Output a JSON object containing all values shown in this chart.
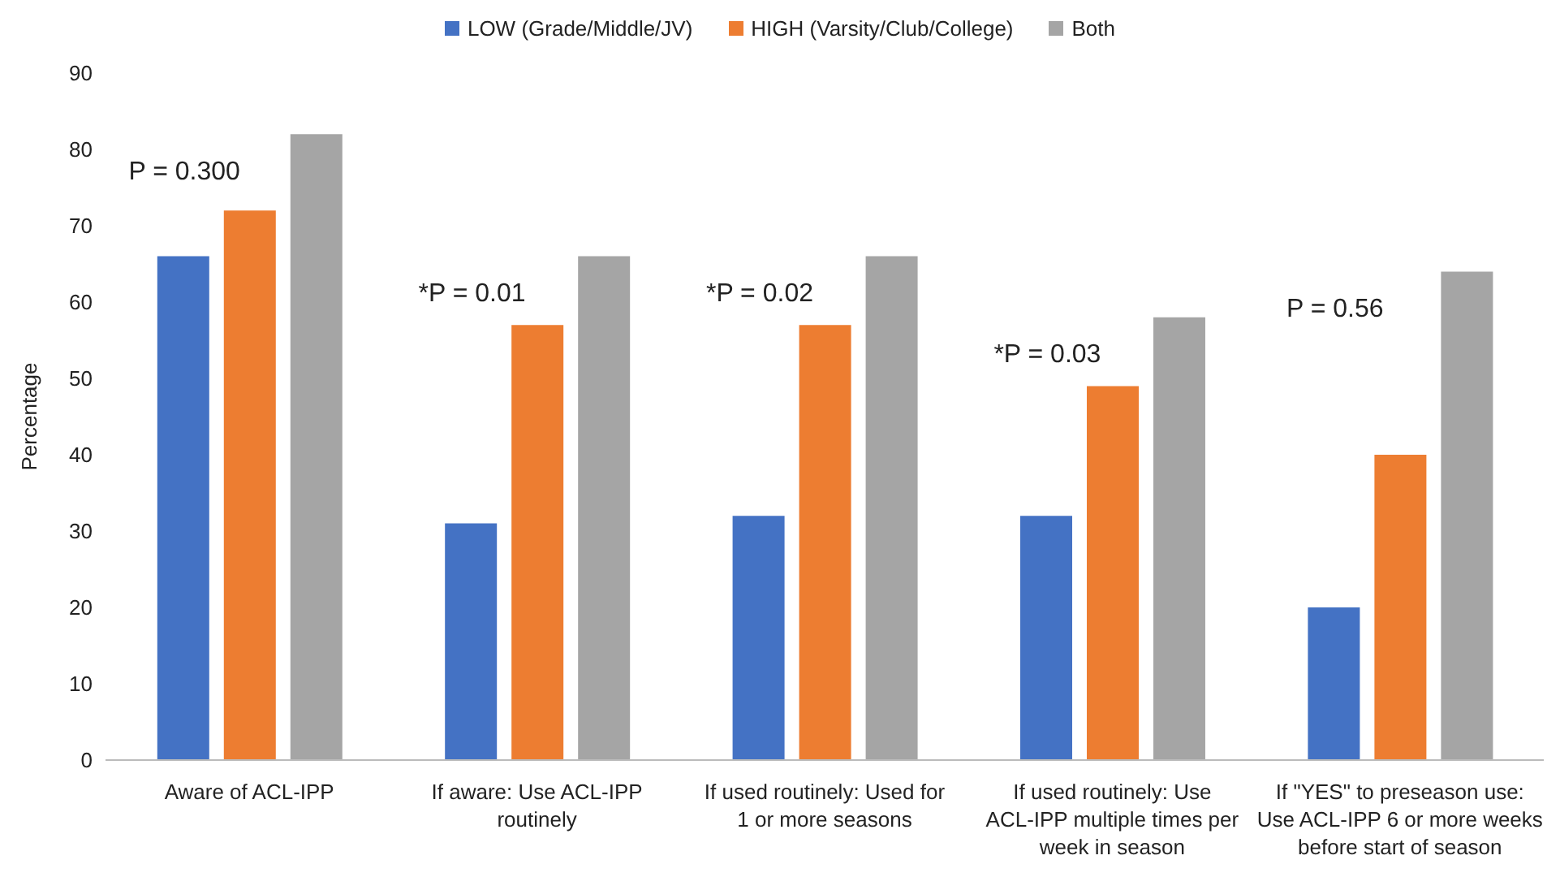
{
  "chart_data": {
    "type": "bar",
    "ylabel": "Percentage",
    "categories": [
      "Aware of ACL-IPP",
      "If aware: Use ACL-IPP routinely",
      "If used routinely: Used for 1 or more seasons",
      "If used routinely: Use ACL-IPP multiple times per week in season",
      "If \"YES\" to preseason use: Use ACL-IPP 6 or more weeks before start of season"
    ],
    "series": [
      {
        "name": "LOW (Grade/Middle/JV)",
        "color": "#4472c4",
        "values": [
          66,
          31,
          32,
          32,
          20
        ]
      },
      {
        "name": "HIGH (Varsity/Club/College)",
        "color": "#ed7d31",
        "values": [
          72,
          57,
          57,
          49,
          40
        ]
      },
      {
        "name": "Both",
        "color": "#a5a5a5",
        "values": [
          82,
          66,
          66,
          58,
          64
        ]
      }
    ],
    "ylim": [
      0,
      90
    ],
    "yticks": [
      0,
      10,
      20,
      30,
      40,
      50,
      60,
      70,
      80,
      90
    ],
    "grid": false,
    "legend": "top",
    "annotations": [
      "P = 0.300",
      "*P = 0.01",
      "*P = 0.02",
      "*P = 0.03",
      "P = 0.56"
    ]
  }
}
